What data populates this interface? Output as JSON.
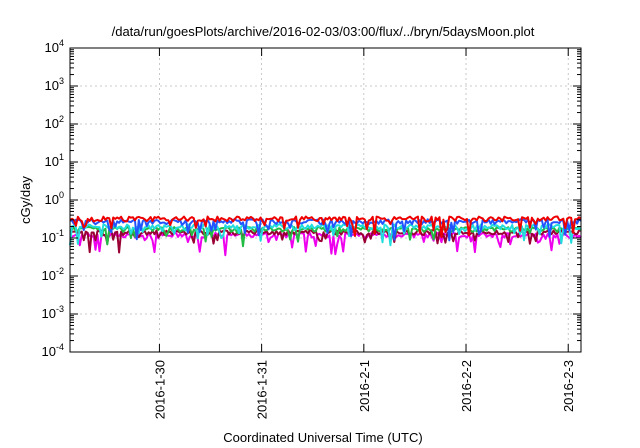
{
  "chart_data": {
    "type": "line",
    "title": "/data/run/goesPlots/archive/2016-02-03/03:00/flux/../bryn/5daysMoon.plot",
    "xlabel": "Coordinated Universal Time (UTC)",
    "ylabel": "cGy/day",
    "yscale": "log",
    "ylim": [
      0.0001,
      10000
    ],
    "yticks": [
      {
        "value": 0.0001,
        "base": "10",
        "exp": "-4"
      },
      {
        "value": 0.001,
        "base": "10",
        "exp": "-3"
      },
      {
        "value": 0.01,
        "base": "10",
        "exp": "-2"
      },
      {
        "value": 0.1,
        "base": "10",
        "exp": "-1"
      },
      {
        "value": 1,
        "base": "10",
        "exp": "0"
      },
      {
        "value": 10,
        "base": "10",
        "exp": "1"
      },
      {
        "value": 100,
        "base": "10",
        "exp": "2"
      },
      {
        "value": 1000,
        "base": "10",
        "exp": "3"
      },
      {
        "value": 10000,
        "base": "10",
        "exp": "4"
      }
    ],
    "xlim": [
      "2016-01-29T03:00",
      "2016-02-03T03:00"
    ],
    "xticks": [
      {
        "value": "2016-01-30T00:00",
        "label": "2016-1-30"
      },
      {
        "value": "2016-01-31T00:00",
        "label": "2016-1-31"
      },
      {
        "value": "2016-02-01T00:00",
        "label": "2016-2-1"
      },
      {
        "value": "2016-02-02T00:00",
        "label": "2016-2-2"
      },
      {
        "value": "2016-02-03T00:00",
        "label": "2016-2-3"
      }
    ],
    "grid": true,
    "legend": "none",
    "series": [
      {
        "color": "#ee0000",
        "level": 0.32,
        "dipcount": 3
      },
      {
        "color": "#2255ff",
        "level": 0.27,
        "dipcount": 4
      },
      {
        "color": "#22dddd",
        "level": 0.2,
        "dipcount": 2
      },
      {
        "color": "#22bb44",
        "level": 0.17,
        "dipcount": 2
      },
      {
        "color": "#990033",
        "level": 0.14,
        "dipcount": 2
      },
      {
        "color": "#ee00ee",
        "level": 0.12,
        "dipcount": 6
      }
    ]
  }
}
